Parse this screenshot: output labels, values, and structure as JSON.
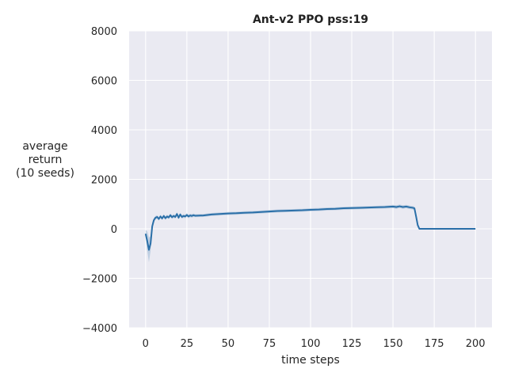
{
  "chart_data": {
    "type": "line",
    "title": "Ant-v2 PPO pss:19",
    "xlabel": "time steps",
    "ylabel_lines": [
      "average",
      "return",
      "(10 seeds)"
    ],
    "xlim": [
      -10,
      210
    ],
    "ylim": [
      -4000,
      8000
    ],
    "xticks": [
      0,
      25,
      50,
      75,
      100,
      125,
      150,
      175,
      200
    ],
    "xtick_labels": [
      "0",
      "25",
      "50",
      "75",
      "100",
      "125",
      "150",
      "175",
      "200"
    ],
    "yticks": [
      -4000,
      -2000,
      0,
      2000,
      4000,
      6000,
      8000
    ],
    "ytick_labels": [
      "−4000",
      "−2000",
      "0",
      "2000",
      "4000",
      "6000",
      "8000"
    ],
    "grid": true,
    "colors": {
      "line": "#2a6fa8",
      "band": "#9ab8d6",
      "plot_background": "#eaeaf2",
      "grid": "#ffffff"
    },
    "series": [
      {
        "x": [
          0,
          1,
          2,
          3,
          4,
          5,
          6,
          7,
          8,
          9,
          10,
          11,
          12,
          13,
          14,
          15,
          16,
          17,
          18,
          19,
          20,
          21,
          22,
          23,
          24,
          25,
          26,
          27,
          28,
          29,
          30,
          35,
          40,
          45,
          50,
          55,
          60,
          65,
          70,
          75,
          80,
          85,
          90,
          95,
          100,
          105,
          110,
          115,
          120,
          125,
          130,
          135,
          140,
          145,
          150,
          152,
          154,
          156,
          158,
          160,
          162,
          163,
          164,
          165,
          166,
          170,
          175,
          180,
          185,
          190,
          195,
          200
        ],
        "y": [
          -200,
          -500,
          -850,
          -600,
          100,
          350,
          450,
          480,
          400,
          500,
          420,
          520,
          430,
          500,
          460,
          550,
          470,
          520,
          480,
          600,
          450,
          580,
          480,
          520,
          500,
          560,
          500,
          540,
          520,
          550,
          530,
          540,
          580,
          600,
          620,
          630,
          650,
          660,
          680,
          700,
          720,
          730,
          740,
          750,
          770,
          780,
          800,
          810,
          830,
          840,
          850,
          860,
          870,
          880,
          900,
          880,
          910,
          880,
          900,
          870,
          850,
          830,
          500,
          150,
          0,
          0,
          0,
          0,
          0,
          0,
          0,
          0
        ],
        "spread": [
          150,
          400,
          500,
          300,
          150,
          80,
          70,
          70,
          70,
          70,
          70,
          70,
          70,
          70,
          70,
          70,
          70,
          70,
          70,
          70,
          70,
          70,
          70,
          70,
          70,
          70,
          70,
          70,
          70,
          70,
          60,
          60,
          60,
          60,
          60,
          60,
          60,
          60,
          60,
          60,
          60,
          60,
          60,
          60,
          60,
          60,
          60,
          60,
          60,
          60,
          60,
          60,
          60,
          60,
          70,
          70,
          70,
          70,
          70,
          70,
          70,
          70,
          60,
          30,
          0,
          0,
          0,
          0,
          0,
          0,
          0,
          0
        ]
      }
    ]
  }
}
